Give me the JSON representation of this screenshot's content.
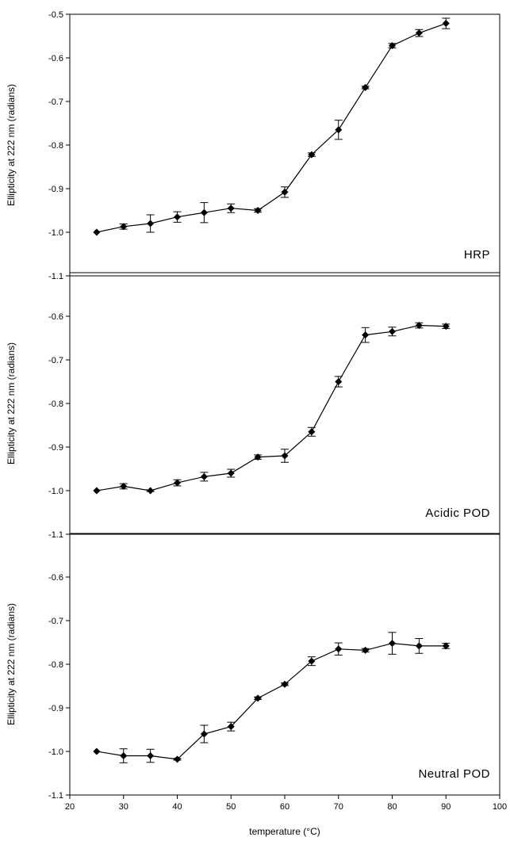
{
  "chart_data": {
    "type": "line",
    "xlabel": "temperature (°C)",
    "xlim": [
      20,
      100
    ],
    "x_ticks": [
      20,
      30,
      40,
      50,
      60,
      70,
      80,
      90,
      100
    ],
    "ylim": [
      -1.1,
      -0.5
    ],
    "grid": false,
    "marker": "diamond",
    "panels": [
      {
        "label": "HRP",
        "ylabel": "Ellipticity at 222 nm (radians)",
        "ylim": [
          -1.1,
          -0.5
        ],
        "y_ticks": [
          "-0.5",
          "-0.6",
          "-0.7",
          "-0.8",
          "-0.9",
          "-1.0",
          "-1.1"
        ],
        "x": [
          25,
          30,
          35,
          40,
          45,
          50,
          55,
          60,
          65,
          70,
          75,
          80,
          85,
          90
        ],
        "y": [
          -1.0,
          -0.987,
          -0.98,
          -0.965,
          -0.955,
          -0.945,
          -0.95,
          -0.908,
          -0.822,
          -0.765,
          -0.668,
          -0.572,
          -0.543,
          -0.521
        ],
        "err": [
          0.0,
          0.006,
          0.02,
          0.012,
          0.023,
          0.01,
          0.004,
          0.012,
          0.004,
          0.022,
          0.003,
          0.005,
          0.008,
          0.012
        ]
      },
      {
        "label": "Acidic POD",
        "ylabel": "Ellipticity at 222 nm (radians)",
        "ylim": [
          -1.1,
          -0.5
        ],
        "y_ticks": [
          "-0.6",
          "-0.7",
          "-0.8",
          "-0.9",
          "-1.0",
          "-1.1"
        ],
        "x": [
          25,
          30,
          35,
          40,
          45,
          50,
          55,
          60,
          65,
          70,
          75,
          80,
          85,
          90
        ],
        "y": [
          -1.0,
          -0.99,
          -1.0,
          -0.982,
          -0.968,
          -0.96,
          -0.923,
          -0.92,
          -0.865,
          -0.75,
          -0.643,
          -0.635,
          -0.621,
          -0.623
        ],
        "err": [
          0.0,
          0.006,
          0.002,
          0.007,
          0.01,
          0.009,
          0.005,
          0.015,
          0.01,
          0.012,
          0.017,
          0.01,
          0.006,
          0.005
        ]
      },
      {
        "label": "Neutral POD",
        "ylabel": "Ellipticity at 222 nm (radians)",
        "ylim": [
          -1.1,
          -0.5
        ],
        "y_ticks": [
          "-0.6",
          "-0.7",
          "-0.8",
          "-0.9",
          "-1.0",
          "-1.1"
        ],
        "x": [
          25,
          30,
          35,
          40,
          45,
          50,
          55,
          60,
          65,
          70,
          75,
          80,
          85,
          90
        ],
        "y": [
          -1.0,
          -1.01,
          -1.01,
          -1.018,
          -0.96,
          -0.943,
          -0.878,
          -0.846,
          -0.793,
          -0.765,
          -0.768,
          -0.752,
          -0.758,
          -0.758
        ],
        "err": [
          0.0,
          0.016,
          0.015,
          0.002,
          0.02,
          0.01,
          0.003,
          0.003,
          0.01,
          0.014,
          0.004,
          0.025,
          0.017,
          0.006
        ]
      }
    ]
  }
}
